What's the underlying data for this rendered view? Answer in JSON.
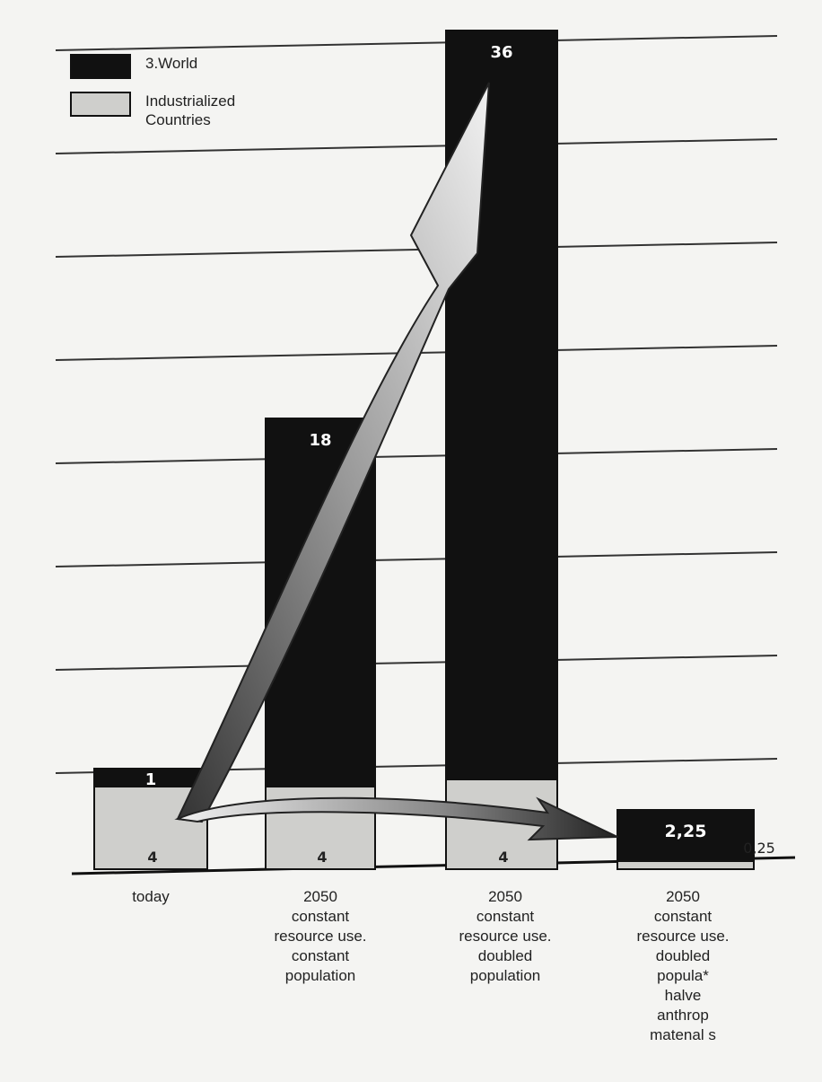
{
  "chart_data": {
    "type": "bar",
    "stacked": true,
    "categories": [
      "today",
      "2050\nconstant\nresource use.\nconstant\npopulation",
      "2050\nconstant\nresource use.\ndoubled\npopulation",
      "2050\nconstant\nresource use.\ndoubled\npopula*\nhalve\nanthrop\nmatenal s"
    ],
    "series": [
      {
        "name": "Industrialized\nCountries",
        "color": "#cfcfcc",
        "values": [
          4,
          4,
          4,
          0.25
        ],
        "labels": [
          "4",
          "4",
          "4",
          "0,25"
        ]
      },
      {
        "name": "3.World",
        "color": "#111111",
        "values": [
          1,
          18,
          36,
          2.25
        ],
        "labels": [
          "1",
          "18",
          "36",
          "2,25"
        ]
      }
    ],
    "gridlines": true,
    "legend_position": "top-left",
    "arrows": [
      "today to 2050 doubled population",
      "today to 2050 halved"
    ]
  }
}
